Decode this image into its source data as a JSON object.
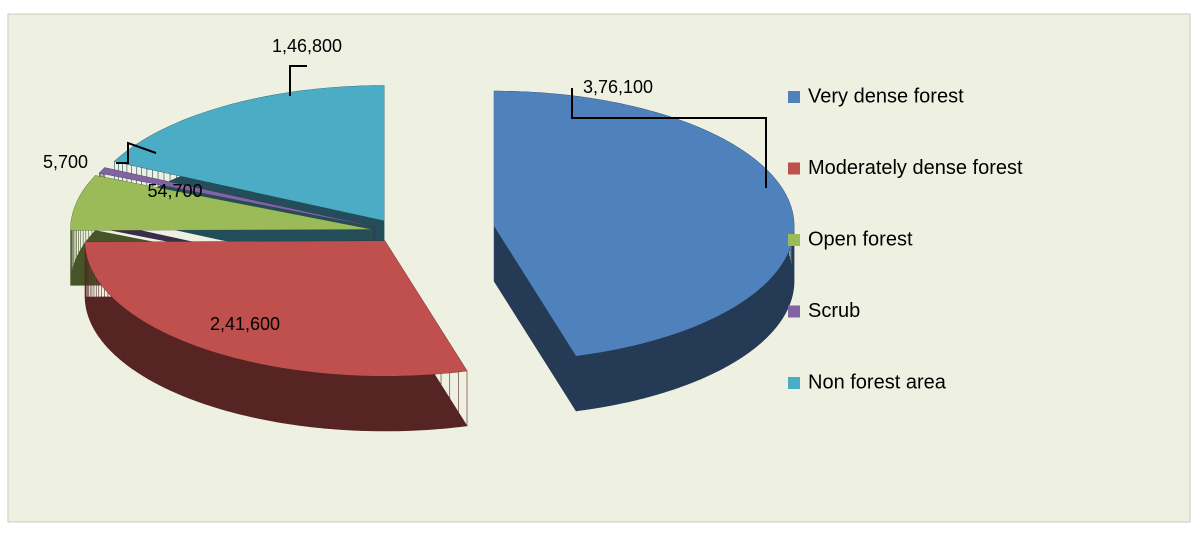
{
  "chart_data": {
    "type": "pie",
    "categories": [
      "Very dense forest",
      "Moderately dense forest",
      "Open forest",
      "Scrub",
      "Non forest area"
    ],
    "values": [
      376100,
      241600,
      54700,
      5700,
      146800
    ],
    "value_labels": [
      "3,76,100",
      "2,41,600",
      "54,700",
      "5,700",
      "1,46,800"
    ],
    "colors": [
      "#4f81bd",
      "#c0504d",
      "#9bbb59",
      "#8064a2",
      "#4bacc6"
    ],
    "legend": "right"
  }
}
